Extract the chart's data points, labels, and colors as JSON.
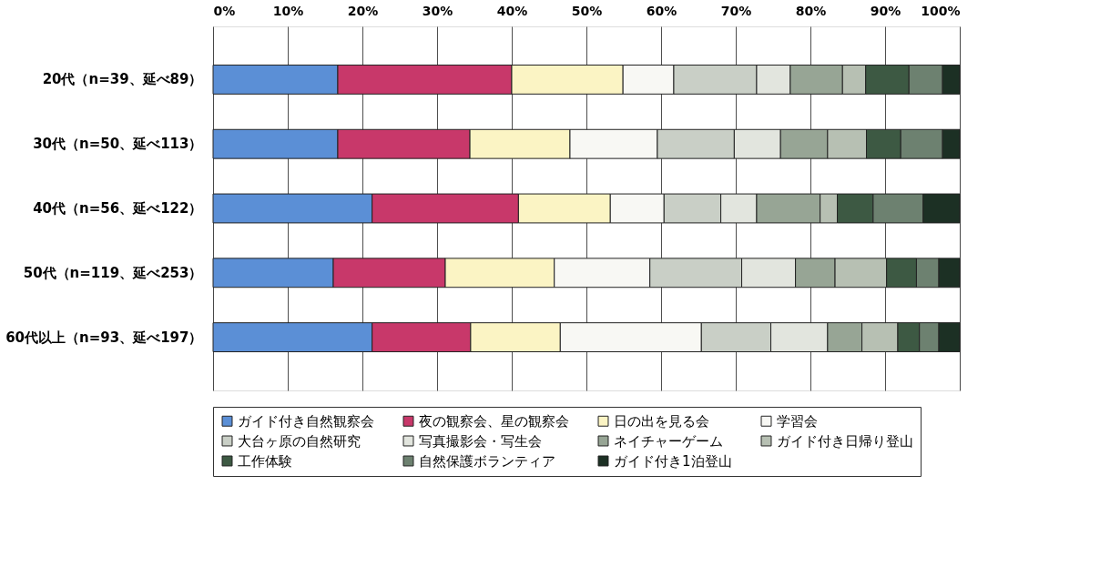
{
  "chart_data": {
    "type": "bar",
    "orientation": "horizontal",
    "stacked": true,
    "categories": [
      "20代（n=39、延べ89）",
      "30代（n=50、延べ113）",
      "40代（n=56、延べ122）",
      "50代（n=119、延べ253）",
      "60代以上（n=93、延べ197）"
    ],
    "series": [
      {
        "name": "ガイド付き自然観察会",
        "color": "#5b8fd6",
        "values": [
          16.7,
          16.7,
          21.3,
          16.1,
          21.3
        ]
      },
      {
        "name": "夜の観察会、星の観察会",
        "color": "#c8386a",
        "values": [
          23.3,
          17.7,
          19.6,
          15.0,
          13.2
        ]
      },
      {
        "name": "日の出を見る会",
        "color": "#fbf4c4",
        "values": [
          14.9,
          13.4,
          12.3,
          14.6,
          12.0
        ]
      },
      {
        "name": "学習会",
        "color": "#f8f8f4",
        "values": [
          6.8,
          11.7,
          7.2,
          12.8,
          18.9
        ]
      },
      {
        "name": "大台ヶ原の自然研究",
        "color": "#c9cfc6",
        "values": [
          11.1,
          10.3,
          7.6,
          12.3,
          9.3
        ]
      },
      {
        "name": "写真撮影会・写生会",
        "color": "#e2e5de",
        "values": [
          4.5,
          6.2,
          4.8,
          7.2,
          7.6
        ]
      },
      {
        "name": "ネイチャーゲーム",
        "color": "#97a595",
        "values": [
          7.0,
          6.3,
          8.5,
          5.3,
          4.6
        ]
      },
      {
        "name": "ガイド付き日帰り登山",
        "color": "#b7c0b3",
        "values": [
          3.1,
          5.2,
          2.3,
          6.9,
          4.8
        ]
      },
      {
        "name": "工作体験",
        "color": "#3d5943",
        "values": [
          5.8,
          4.6,
          4.8,
          4.0,
          2.9
        ]
      },
      {
        "name": "自然保護ボランティア",
        "color": "#6d8170",
        "values": [
          4.5,
          5.6,
          6.7,
          3.0,
          2.6
        ]
      },
      {
        "name": "ガイド付き1泊登山",
        "color": "#1c3024",
        "values": [
          2.3,
          2.3,
          4.9,
          2.8,
          2.8
        ]
      }
    ],
    "xlim": [
      0,
      100
    ],
    "xticks": [
      {
        "value": 0,
        "label": "0%"
      },
      {
        "value": 10,
        "label": "10%"
      },
      {
        "value": 20,
        "label": "20%"
      },
      {
        "value": 30,
        "label": "30%"
      },
      {
        "value": 40,
        "label": "40%"
      },
      {
        "value": 50,
        "label": "50%"
      },
      {
        "value": 60,
        "label": "60%"
      },
      {
        "value": 70,
        "label": "70%"
      },
      {
        "value": 80,
        "label": "80%"
      },
      {
        "value": 90,
        "label": "90%"
      },
      {
        "value": 100,
        "label": "100%"
      }
    ],
    "grid": "x",
    "legend": "bottom"
  }
}
